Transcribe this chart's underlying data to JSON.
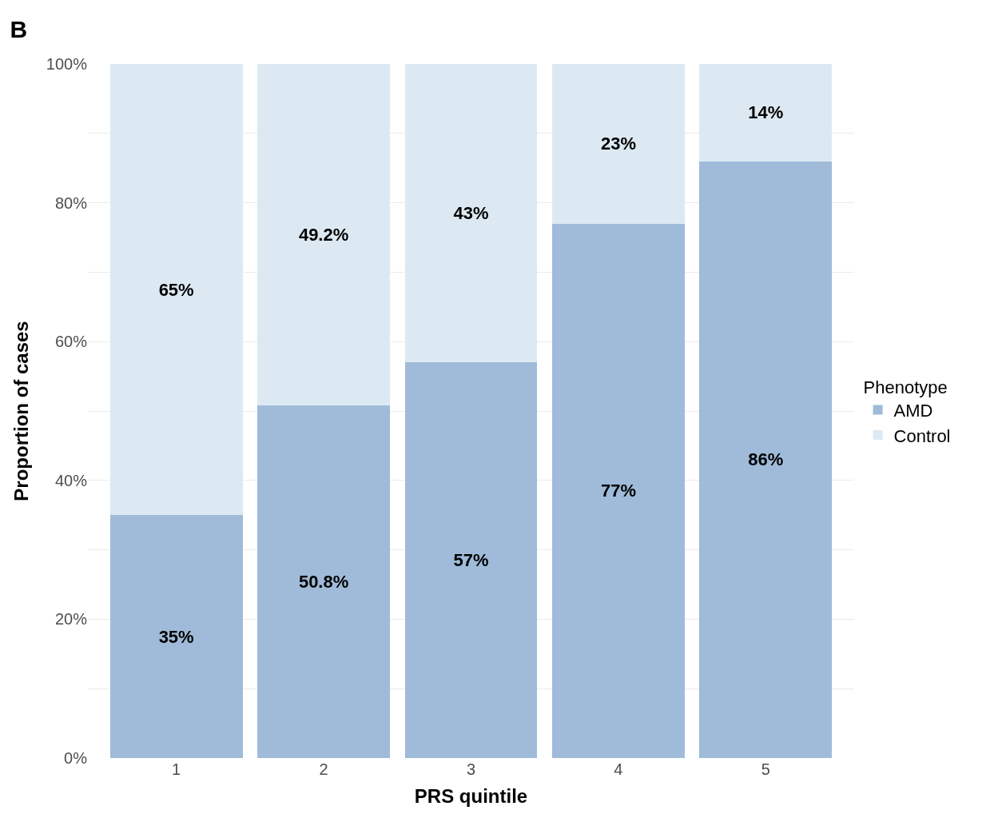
{
  "chart_data": {
    "type": "bar",
    "title": "B",
    "xlabel": "PRS quintile",
    "ylabel": "Proportion of cases",
    "legend_title": "Phenotype",
    "categories": [
      "1",
      "2",
      "3",
      "4",
      "5"
    ],
    "stacked": true,
    "series": [
      {
        "name": "AMD",
        "color": "#9fbbd9",
        "values": [
          35,
          50.8,
          57,
          77,
          86
        ],
        "value_labels": [
          "35%",
          "50.8%",
          "57%",
          "77%",
          "86%"
        ]
      },
      {
        "name": "Control",
        "color": "#dde9f2",
        "values": [
          65,
          49.2,
          43,
          23,
          14
        ],
        "value_labels": [
          "65%",
          "49.2%",
          "43%",
          "23%",
          "14%"
        ]
      }
    ],
    "ylim": [
      0,
      100
    ],
    "yticks": [
      {
        "value": 0,
        "label": "0%"
      },
      {
        "value": 10,
        "label": null
      },
      {
        "value": 20,
        "label": "20%"
      },
      {
        "value": 30,
        "label": null
      },
      {
        "value": 40,
        "label": "40%"
      },
      {
        "value": 50,
        "label": null
      },
      {
        "value": 60,
        "label": "60%"
      },
      {
        "value": 70,
        "label": null
      },
      {
        "value": 80,
        "label": "80%"
      },
      {
        "value": 90,
        "label": null
      },
      {
        "value": 100,
        "label": "100%"
      }
    ],
    "grid": true,
    "legend": "right"
  }
}
